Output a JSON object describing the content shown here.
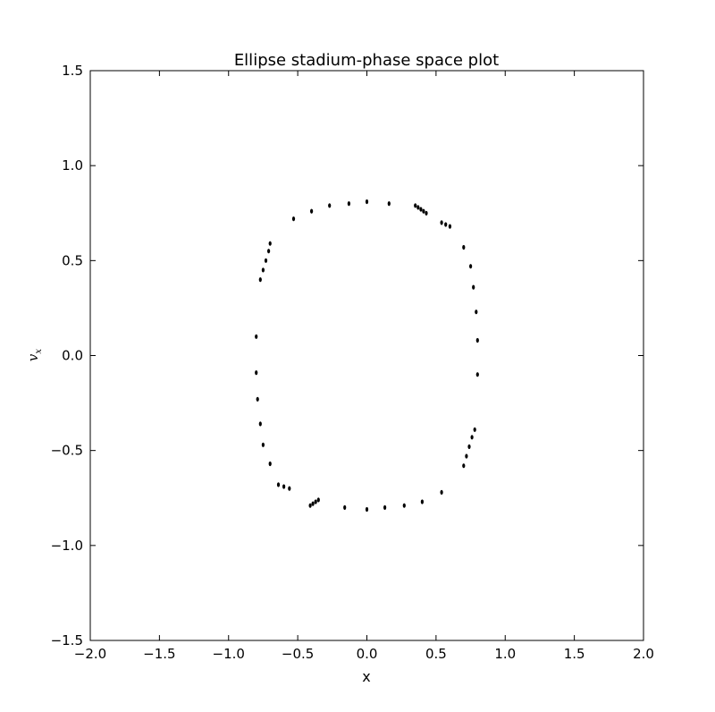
{
  "chart_data": {
    "type": "scatter",
    "title": "Ellipse stadium-phase space plot",
    "xlabel": "x",
    "ylabel": "v_x",
    "ylabel_display": "vx",
    "xlim": [
      -2.0,
      2.0
    ],
    "ylim": [
      -1.5,
      1.5
    ],
    "xticks": [
      -2.0,
      -1.5,
      -1.0,
      -0.5,
      0.0,
      0.5,
      1.0,
      1.5,
      2.0
    ],
    "yticks": [
      -1.5,
      -1.0,
      -0.5,
      0.0,
      0.5,
      1.0,
      1.5
    ],
    "xtick_labels": [
      "−2.0",
      "−1.5",
      "−1.0",
      "−0.5",
      "0.0",
      "0.5",
      "1.0",
      "1.5",
      "2.0"
    ],
    "ytick_labels": [
      "−1.5",
      "−1.0",
      "−0.5",
      "0.0",
      "0.5",
      "1.0",
      "1.5"
    ],
    "grid": false,
    "legend": "none",
    "marker_color": "#000000",
    "series": [
      {
        "points": [
          [
            -0.53,
            0.72
          ],
          [
            -0.4,
            0.76
          ],
          [
            -0.27,
            0.79
          ],
          [
            -0.13,
            0.8
          ],
          [
            0.0,
            0.81
          ],
          [
            0.16,
            0.8
          ],
          [
            0.35,
            0.79
          ],
          [
            0.37,
            0.78
          ],
          [
            0.39,
            0.77
          ],
          [
            0.41,
            0.76
          ],
          [
            0.43,
            0.75
          ],
          [
            0.54,
            0.7
          ],
          [
            0.57,
            0.69
          ],
          [
            0.6,
            0.68
          ],
          [
            0.7,
            0.57
          ],
          [
            0.75,
            0.47
          ],
          [
            0.77,
            0.36
          ],
          [
            0.79,
            0.23
          ],
          [
            0.8,
            0.08
          ],
          [
            0.8,
            -0.1
          ],
          [
            0.7,
            -0.58
          ],
          [
            0.72,
            -0.53
          ],
          [
            0.74,
            -0.48
          ],
          [
            0.76,
            -0.43
          ],
          [
            0.78,
            -0.39
          ],
          [
            0.54,
            -0.72
          ],
          [
            0.4,
            -0.77
          ],
          [
            0.27,
            -0.79
          ],
          [
            0.13,
            -0.8
          ],
          [
            0.0,
            -0.81
          ],
          [
            -0.16,
            -0.8
          ],
          [
            -0.35,
            -0.76
          ],
          [
            -0.37,
            -0.77
          ],
          [
            -0.39,
            -0.78
          ],
          [
            -0.41,
            -0.79
          ],
          [
            -0.64,
            -0.68
          ],
          [
            -0.6,
            -0.69
          ],
          [
            -0.56,
            -0.7
          ],
          [
            -0.7,
            -0.57
          ],
          [
            -0.75,
            -0.47
          ],
          [
            -0.77,
            -0.36
          ],
          [
            -0.79,
            -0.23
          ],
          [
            -0.8,
            -0.09
          ],
          [
            -0.8,
            0.1
          ],
          [
            -0.77,
            0.4
          ],
          [
            -0.75,
            0.45
          ],
          [
            -0.73,
            0.5
          ],
          [
            -0.71,
            0.55
          ],
          [
            -0.7,
            0.59
          ]
        ]
      }
    ]
  }
}
